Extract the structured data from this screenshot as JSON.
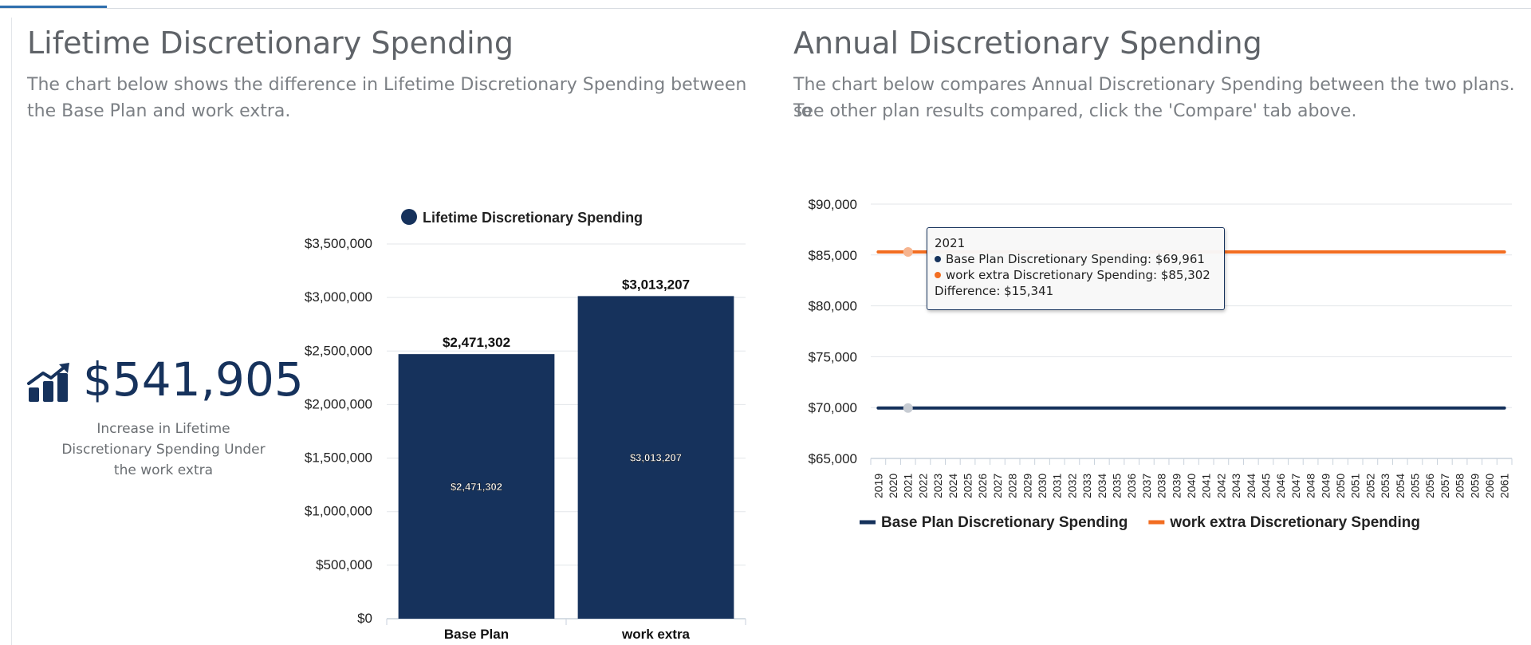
{
  "colors": {
    "navy": "#16325c",
    "orange": "#f26d21",
    "title_gray": "#5f6368",
    "text_gray": "#7c8085"
  },
  "left_panel": {
    "title": "Lifetime Discretionary Spending",
    "description_line1": "The chart below shows the difference in Lifetime Discretionary Spending between",
    "description_line2": "the Base Plan and work extra.",
    "stat": {
      "icon": "chart-increase-icon",
      "value": "$541,905",
      "label_line1": "Increase in Lifetime",
      "label_line2": "Discretionary Spending Under",
      "label_line3": "the work extra"
    }
  },
  "right_panel": {
    "title": "Annual Discretionary Spending",
    "description_line1": "The chart below compares Annual Discretionary Spending between the two plans. To",
    "description_line2": "see other plan results compared, click the 'Compare' tab above.",
    "tooltip": {
      "year": "2021",
      "base_line": "Base Plan Discretionary Spending: $69,961",
      "extra_line": "work extra Discretionary Spending: $85,302",
      "difference_line": "Difference: $15,341"
    }
  },
  "chart_data": [
    {
      "type": "bar",
      "legend": [
        "Lifetime Discretionary Spending"
      ],
      "legend_position": "top",
      "categories": [
        "Base Plan",
        "work extra"
      ],
      "series": [
        {
          "name": "Lifetime Discretionary Spending",
          "values": [
            2471302,
            3013207
          ]
        }
      ],
      "value_labels": [
        "$2,471,302",
        "$3,013,207"
      ],
      "ylim": [
        0,
        3500000
      ],
      "yticks": [
        0,
        500000,
        1000000,
        1500000,
        2000000,
        2500000,
        3000000,
        3500000
      ],
      "ytick_labels": [
        "$0",
        "$500,000",
        "$1,000,000",
        "$1,500,000",
        "$2,000,000",
        "$2,500,000",
        "$3,000,000",
        "$3,500,000"
      ],
      "grid": true
    },
    {
      "type": "line",
      "x": [
        "2019",
        "2020",
        "2021",
        "2022",
        "2023",
        "2024",
        "2025",
        "2026",
        "2027",
        "2028",
        "2029",
        "2030",
        "2031",
        "2032",
        "2033",
        "2034",
        "2035",
        "2036",
        "2037",
        "2038",
        "2039",
        "2040",
        "2041",
        "2042",
        "2043",
        "2044",
        "2045",
        "2046",
        "2047",
        "2048",
        "2049",
        "2050",
        "2051",
        "2052",
        "2053",
        "2054",
        "2055",
        "2056",
        "2057",
        "2058",
        "2059",
        "2060",
        "2061"
      ],
      "series": [
        {
          "name": "Base Plan Discretionary Spending",
          "constant_value": 69961
        },
        {
          "name": "work extra Discretionary Spending",
          "constant_value": 85302
        }
      ],
      "ylim": [
        65000,
        90000
      ],
      "yticks": [
        65000,
        70000,
        75000,
        80000,
        85000,
        90000
      ],
      "ytick_labels": [
        "$65,000",
        "$70,000",
        "$75,000",
        "$80,000",
        "$85,000",
        "$90,000"
      ],
      "highlighted_x": "2021",
      "legend_position": "bottom",
      "grid": true
    }
  ]
}
